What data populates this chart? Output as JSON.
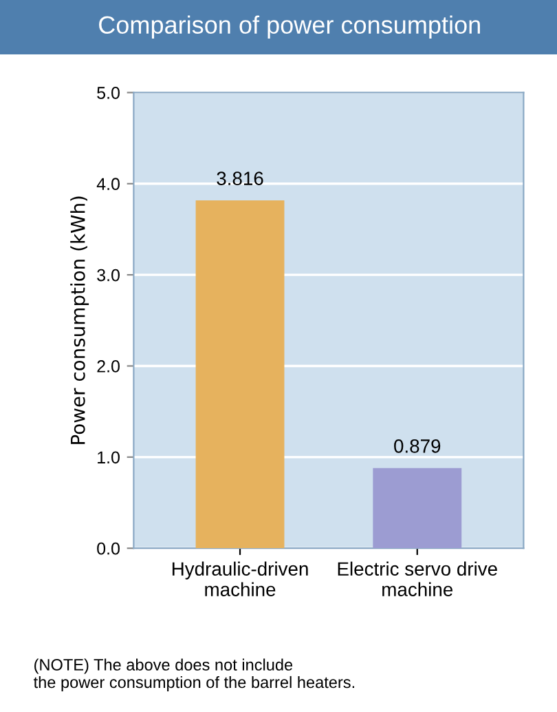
{
  "chart_data": {
    "type": "bar",
    "title": "Comparison of power consumption",
    "ylabel": "Power consumption (kWh)",
    "categories": [
      "Hydraulic-driven\nmachine",
      "Electric servo drive\nmachine"
    ],
    "values": [
      3.816,
      0.879
    ],
    "colors": [
      "#e6b25e",
      "#9c9cd2"
    ],
    "ylim": [
      0,
      5
    ],
    "yticks": [
      {
        "value": 0,
        "label": "0.0"
      },
      {
        "value": 1,
        "label": "1.0"
      },
      {
        "value": 2,
        "label": "2.0"
      },
      {
        "value": 3,
        "label": "3.0"
      },
      {
        "value": 4,
        "label": "4.0"
      },
      {
        "value": 5,
        "label": "5.0"
      }
    ],
    "grid": "y",
    "data_labels": true,
    "annotations": [
      "(NOTE) The above does not include\nthe power consumption of the barrel heaters."
    ]
  }
}
